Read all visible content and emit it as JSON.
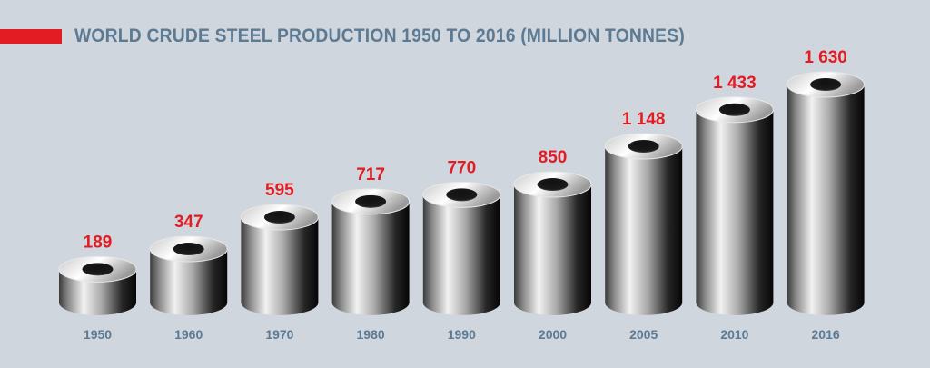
{
  "title": "WORLD CRUDE STEEL PRODUCTION 1950 TO 2016 (MILLION TONNES)",
  "colors": {
    "background": "#cfd6dd",
    "accent_red": "#e31b23",
    "title_blue": "#5d7a93",
    "value_red": "#e31b23"
  },
  "chart_data": {
    "type": "bar",
    "title": "WORLD CRUDE STEEL PRODUCTION 1950 TO 2016 (MILLION TONNES)",
    "categories": [
      "1950",
      "1960",
      "1970",
      "1980",
      "1990",
      "2000",
      "2005",
      "2010",
      "2016"
    ],
    "values": [
      189,
      347,
      595,
      717,
      770,
      850,
      1148,
      1433,
      1630
    ],
    "value_labels": [
      "189",
      "347",
      "595",
      "717",
      "770",
      "850",
      "1 148",
      "1 433",
      "1 630"
    ],
    "xlabel": "",
    "ylabel": "",
    "ylim": [
      0,
      1630
    ],
    "grid": false,
    "legend": "none",
    "mark_style": "steel cylinders"
  }
}
